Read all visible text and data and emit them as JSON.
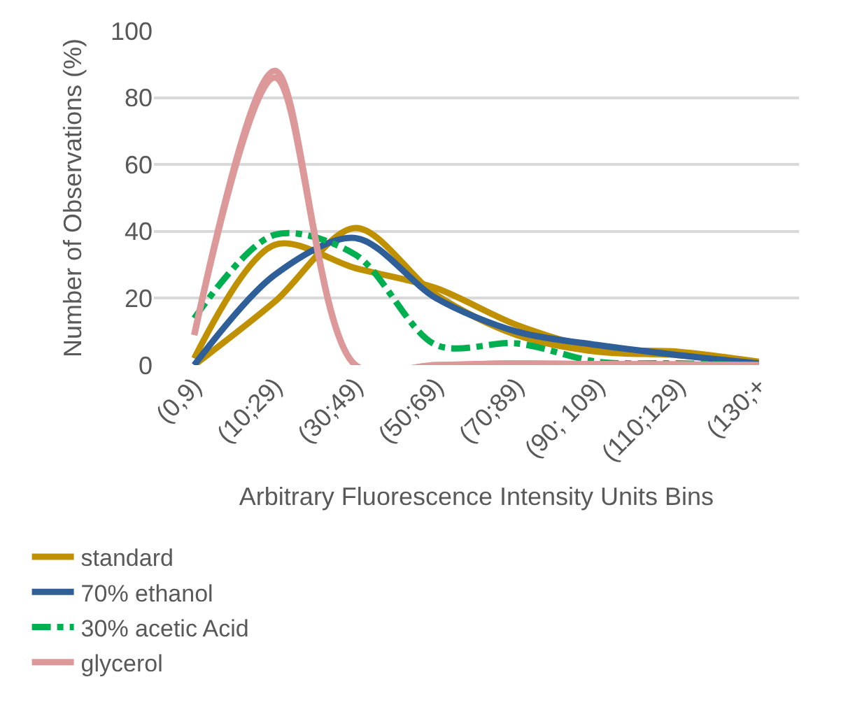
{
  "chart_data": {
    "type": "line",
    "xlabel": "Arbitrary Fluorescence Intensity Units Bins",
    "ylabel": "Number of Observations (%)",
    "categories": [
      "(0,9)",
      "(10;29)",
      "(30;49)",
      "(50;69)",
      "(70;89)",
      "(90; 109)",
      "(110;129)",
      "(130;+"
    ],
    "series": [
      {
        "name": "standard",
        "color": "#bf9000",
        "values": [
          2,
          36,
          29,
          23,
          12,
          5,
          4,
          1
        ]
      },
      {
        "color": "#bf9000",
        "values": [
          0,
          19,
          41,
          21,
          9,
          4,
          3,
          0.5
        ]
      },
      {
        "name": "70% ethanol",
        "color": "#2f5f98",
        "values": [
          0,
          27,
          38,
          20,
          10,
          6,
          3,
          0.5
        ]
      },
      {
        "name": "30% acetic Acid",
        "color": "#00b050",
        "line_style": "dashed",
        "values": [
          14,
          39,
          33,
          6,
          6.5,
          1,
          0.5,
          0
        ]
      },
      {
        "name": "glycerol",
        "color": "#dd9999",
        "values": [
          9,
          88,
          0,
          0,
          0.5,
          0.3,
          0.2,
          0
        ]
      },
      {
        "color": "#dd9999",
        "values": [
          9,
          86,
          0,
          0,
          0.5,
          0.3,
          0.2,
          0
        ]
      }
    ],
    "ylim": [
      0,
      100
    ],
    "yticks": [
      0,
      20,
      40,
      60,
      80,
      100
    ],
    "grid": "y",
    "legend": "bottom"
  }
}
